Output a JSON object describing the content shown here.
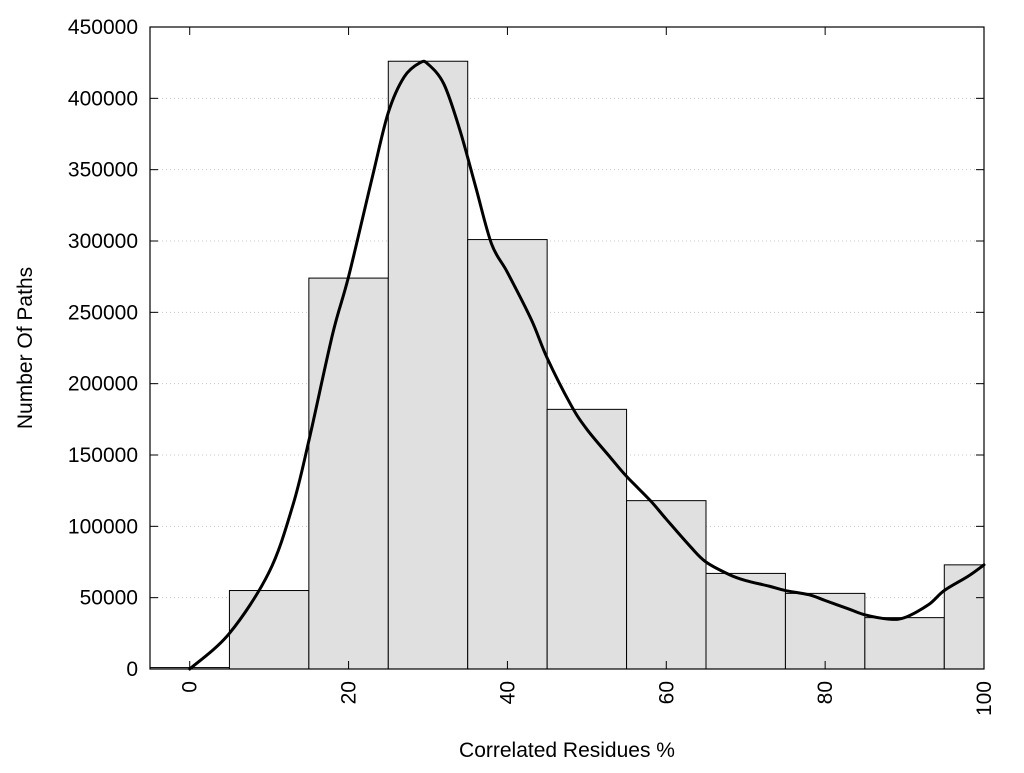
{
  "chart_data": {
    "type": "bar",
    "title": "",
    "xlabel": "Correlated Residues %",
    "ylabel": "Number Of Paths",
    "xlim": [
      -5,
      100
    ],
    "ylim": [
      0,
      450000
    ],
    "x_ticks": [
      0,
      20,
      40,
      60,
      80,
      100
    ],
    "y_ticks": [
      0,
      50000,
      100000,
      150000,
      200000,
      250000,
      300000,
      350000,
      400000,
      450000
    ],
    "grid": "horizontal dotted",
    "bin_width": 10,
    "categories": [
      0,
      10,
      20,
      30,
      40,
      50,
      60,
      70,
      80,
      90,
      100
    ],
    "values": [
      1000,
      55000,
      274000,
      426000,
      301000,
      182000,
      118000,
      67000,
      53000,
      36000,
      73000
    ],
    "series": [
      {
        "type": "bar",
        "values": [
          1000,
          55000,
          274000,
          426000,
          301000,
          182000,
          118000,
          67000,
          53000,
          36000,
          73000
        ]
      },
      {
        "type": "line",
        "x": [
          0,
          5,
          10,
          13,
          15,
          18,
          20,
          23,
          25,
          27,
          29,
          30,
          32,
          34,
          36,
          38,
          40,
          43,
          45,
          48,
          50,
          53,
          55,
          58,
          60,
          63,
          65,
          68,
          70,
          73,
          75,
          78,
          80,
          83,
          85,
          88,
          90,
          93,
          95,
          98,
          100
        ],
        "y": [
          0,
          25000,
          68000,
          115000,
          160000,
          235000,
          275000,
          345000,
          390000,
          415000,
          425000,
          424000,
          410000,
          378000,
          338000,
          298000,
          278000,
          245000,
          218000,
          185000,
          168000,
          148000,
          135000,
          118000,
          105000,
          86000,
          75000,
          66000,
          62000,
          58000,
          55000,
          52000,
          48000,
          42000,
          38000,
          35000,
          36000,
          45000,
          55000,
          65000,
          73000
        ]
      }
    ],
    "colors": {
      "bar_fill": "#e0e0e0",
      "bar_stroke": "#000000",
      "line": "#000000",
      "grid": "#c8c8c8"
    }
  }
}
